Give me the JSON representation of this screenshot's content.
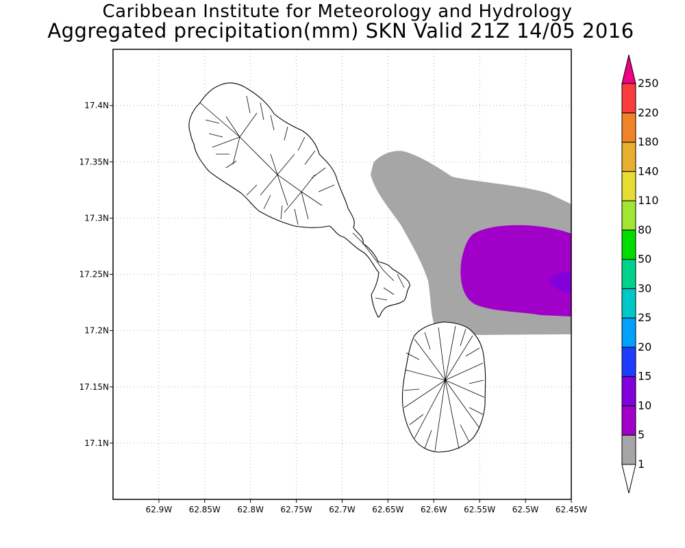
{
  "title": {
    "line1": "Caribbean Institute for Meteorology and Hydrology",
    "line2": "Aggregated precipitation(mm) SKN Valid 21Z 14/05 2016"
  },
  "map": {
    "lat_range": [
      17.05,
      17.45
    ],
    "lon_range": [
      -62.95,
      -62.45
    ],
    "y_ticks": [
      "17.4N",
      "17.35N",
      "17.3N",
      "17.25N",
      "17.2N",
      "17.15N",
      "17.1N"
    ],
    "x_ticks": [
      "62.9W",
      "62.85W",
      "62.8W",
      "62.75W",
      "62.7W",
      "62.65W",
      "62.6W",
      "62.55W",
      "62.5W",
      "62.45W"
    ],
    "grid": true,
    "features": [
      "St. Kitts coastline with watershed outlines",
      "Nevis coastline with watershed outlines"
    ],
    "precip_regions": [
      {
        "range": "1-5 mm",
        "color": "#a6a6a6"
      },
      {
        "range": "5-10 mm",
        "color": "#a000c8"
      },
      {
        "range": "10-15 mm",
        "color": "#8200dc"
      }
    ]
  },
  "colorbar": {
    "labels": [
      "1",
      "5",
      "10",
      "15",
      "20",
      "25",
      "30",
      "50",
      "80",
      "110",
      "140",
      "180",
      "220",
      "250"
    ],
    "colors": [
      "#a6a6a6",
      "#a000c8",
      "#8200dc",
      "#1e3cff",
      "#00a0ff",
      "#00c8c8",
      "#00d28c",
      "#00dc00",
      "#a0e632",
      "#e6dc32",
      "#e6af2d",
      "#f08228",
      "#fa3c3c",
      "#f00082"
    ]
  }
}
